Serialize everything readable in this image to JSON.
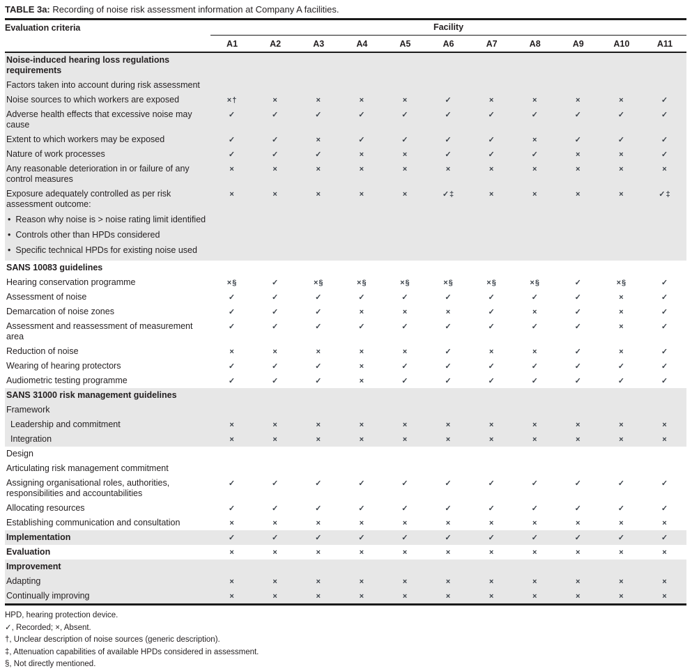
{
  "title": {
    "label": "TABLE 3a:",
    "text": "Recording of noise risk assessment information at Company A facilities."
  },
  "table": {
    "criteria_header": "Evaluation criteria",
    "facility_header": "Facility",
    "columns": [
      "A1",
      "A2",
      "A3",
      "A4",
      "A5",
      "A6",
      "A7",
      "A8",
      "A9",
      "A10",
      "A11"
    ],
    "rows": [
      {
        "label": "Noise-induced hearing loss regulations requirements",
        "style": "bold",
        "shade": true,
        "cells": null
      },
      {
        "label": "Factors taken into account during risk assessment",
        "style": "regular",
        "shade": true,
        "cells": null
      },
      {
        "label": "Noise sources to which workers are exposed",
        "style": "regular",
        "shade": true,
        "cells": [
          "×†",
          "×",
          "×",
          "×",
          "×",
          "✓",
          "×",
          "×",
          "×",
          "×",
          "✓"
        ]
      },
      {
        "label": "Adverse health effects that excessive noise may cause",
        "style": "regular",
        "shade": true,
        "cells": [
          "✓",
          "✓",
          "✓",
          "✓",
          "✓",
          "✓",
          "✓",
          "✓",
          "✓",
          "✓",
          "✓"
        ]
      },
      {
        "label": "Extent to which workers may be exposed",
        "style": "regular",
        "shade": true,
        "cells": [
          "✓",
          "✓",
          "×",
          "✓",
          "✓",
          "✓",
          "✓",
          "×",
          "✓",
          "✓",
          "✓"
        ]
      },
      {
        "label": "Nature of work processes",
        "style": "regular",
        "shade": true,
        "cells": [
          "✓",
          "✓",
          "✓",
          "×",
          "×",
          "✓",
          "✓",
          "✓",
          "×",
          "×",
          "✓"
        ]
      },
      {
        "label": "Any reasonable deterioration in or failure of any control measures",
        "style": "regular",
        "shade": true,
        "cells": [
          "×",
          "×",
          "×",
          "×",
          "×",
          "×",
          "×",
          "×",
          "×",
          "×",
          "×"
        ]
      },
      {
        "label": "Exposure adequately controlled as per risk assessment outcome:",
        "style": "regular",
        "shade": true,
        "bullets": [
          "Reason why noise is > noise rating limit identified",
          "Controls other than HPDs considered",
          "Specific technical HPDs for existing noise used"
        ],
        "cells": [
          "×",
          "×",
          "×",
          "×",
          "×",
          "✓‡",
          "×",
          "×",
          "×",
          "×",
          "✓‡"
        ]
      },
      {
        "label": "SANS 10083 guidelines",
        "style": "bold",
        "shade": false,
        "cells": null
      },
      {
        "label": "Hearing conservation programme",
        "style": "regular",
        "shade": false,
        "cells": [
          "×§",
          "✓",
          "×§",
          "×§",
          "×§",
          "×§",
          "×§",
          "×§",
          "✓",
          "×§",
          "✓"
        ]
      },
      {
        "label": "Assessment of noise",
        "style": "regular",
        "shade": false,
        "cells": [
          "✓",
          "✓",
          "✓",
          "✓",
          "✓",
          "✓",
          "✓",
          "✓",
          "✓",
          "×",
          "✓"
        ]
      },
      {
        "label": "Demarcation of noise zones",
        "style": "regular",
        "shade": false,
        "cells": [
          "✓",
          "✓",
          "✓",
          "×",
          "×",
          "×",
          "✓",
          "×",
          "✓",
          "×",
          "✓"
        ]
      },
      {
        "label": "Assessment and reassessment of measurement area",
        "style": "regular",
        "shade": false,
        "cells": [
          "✓",
          "✓",
          "✓",
          "✓",
          "✓",
          "✓",
          "✓",
          "✓",
          "✓",
          "×",
          "✓"
        ]
      },
      {
        "label": "Reduction of noise",
        "style": "regular",
        "shade": false,
        "cells": [
          "×",
          "×",
          "×",
          "×",
          "×",
          "✓",
          "×",
          "×",
          "✓",
          "×",
          "✓"
        ]
      },
      {
        "label": "Wearing of hearing protectors",
        "style": "regular",
        "shade": false,
        "cells": [
          "✓",
          "✓",
          "✓",
          "×",
          "✓",
          "✓",
          "✓",
          "✓",
          "✓",
          "✓",
          "✓"
        ]
      },
      {
        "label": "Audiometric testing programme",
        "style": "regular",
        "shade": false,
        "cells": [
          "✓",
          "✓",
          "✓",
          "×",
          "✓",
          "✓",
          "✓",
          "✓",
          "✓",
          "✓",
          "✓"
        ]
      },
      {
        "label": "SANS 31000 risk management guidelines",
        "style": "bold",
        "shade": true,
        "cells": null
      },
      {
        "label": "Framework",
        "style": "regular",
        "shade": true,
        "cells": null
      },
      {
        "label": "Leadership and commitment",
        "style": "regular",
        "shade": true,
        "indent": true,
        "cells": [
          "×",
          "×",
          "×",
          "×",
          "×",
          "×",
          "×",
          "×",
          "×",
          "×",
          "×"
        ]
      },
      {
        "label": "Integration",
        "style": "regular",
        "shade": true,
        "indent": true,
        "cells": [
          "×",
          "×",
          "×",
          "×",
          "×",
          "×",
          "×",
          "×",
          "×",
          "×",
          "×"
        ]
      },
      {
        "label": "Design",
        "style": "regular",
        "shade": false,
        "cells": null
      },
      {
        "label": "Articulating risk management commitment",
        "style": "regular",
        "shade": false,
        "cells": null
      },
      {
        "label": "Assigning organisational roles, authorities, responsibilities and accountabilities",
        "style": "regular",
        "shade": false,
        "cells": [
          "✓",
          "✓",
          "✓",
          "✓",
          "✓",
          "✓",
          "✓",
          "✓",
          "✓",
          "✓",
          "✓"
        ]
      },
      {
        "label": "Allocating resources",
        "style": "regular",
        "shade": false,
        "cells": [
          "✓",
          "✓",
          "✓",
          "✓",
          "✓",
          "✓",
          "✓",
          "✓",
          "✓",
          "✓",
          "✓"
        ]
      },
      {
        "label": "Establishing communication and consultation",
        "style": "regular",
        "shade": false,
        "cells": [
          "×",
          "×",
          "×",
          "×",
          "×",
          "×",
          "×",
          "×",
          "×",
          "×",
          "×"
        ]
      },
      {
        "label": "Implementation",
        "style": "bold",
        "shade": true,
        "cells": [
          "✓",
          "✓",
          "✓",
          "✓",
          "✓",
          "✓",
          "✓",
          "✓",
          "✓",
          "✓",
          "✓"
        ]
      },
      {
        "label": "Evaluation",
        "style": "bold",
        "shade": false,
        "cells": [
          "×",
          "×",
          "×",
          "×",
          "×",
          "×",
          "×",
          "×",
          "×",
          "×",
          "×"
        ]
      },
      {
        "label": "Improvement",
        "style": "bold",
        "shade": true,
        "cells": null
      },
      {
        "label": "Adapting",
        "style": "regular",
        "shade": true,
        "cells": [
          "×",
          "×",
          "×",
          "×",
          "×",
          "×",
          "×",
          "×",
          "×",
          "×",
          "×"
        ]
      },
      {
        "label": "Continually improving",
        "style": "regular",
        "shade": true,
        "cells": [
          "×",
          "×",
          "×",
          "×",
          "×",
          "×",
          "×",
          "×",
          "×",
          "×",
          "×"
        ]
      }
    ]
  },
  "symbols": {
    "check": "✓",
    "cross": "×",
    "dagger": "†",
    "double_dagger": "‡",
    "section_mark": "§"
  },
  "colors": {
    "row_shade": "#e7e7e7",
    "rule": "#1a1a1a",
    "text": "#231f20"
  },
  "footnotes": [
    "HPD, hearing protection device.",
    "✓, Recorded; ×, Absent.",
    "†, Unclear description of noise sources (generic description).",
    "‡, Attenuation capabilities of available HPDs considered in assessment.",
    "§, Not directly mentioned."
  ]
}
